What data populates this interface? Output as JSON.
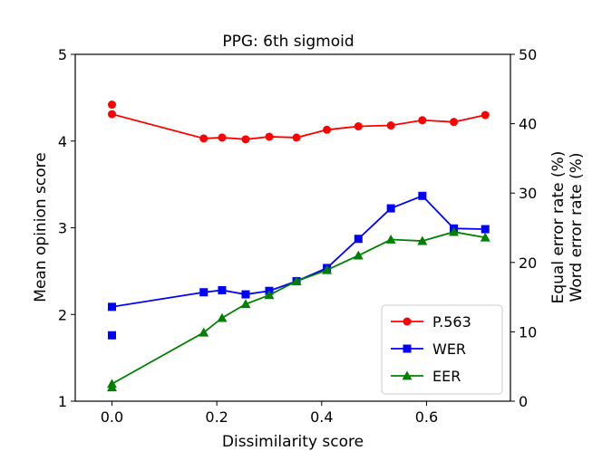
{
  "chart_data": {
    "type": "line",
    "title": "PPG: 6th sigmoid",
    "xlabel": "Dissimilarity score",
    "ylabel": "Mean opinion score",
    "y2label": [
      "Equal error rate (%)",
      "Word error rate (%)"
    ],
    "xlim": [
      -0.07,
      0.76
    ],
    "ylim": [
      1,
      5
    ],
    "y2lim": [
      0,
      50
    ],
    "xticks": [
      "0.0",
      "0.2",
      "0.4",
      "0.6"
    ],
    "xtick_values": [
      0.0,
      0.2,
      0.4,
      0.6
    ],
    "yticks": [
      "1",
      "2",
      "3",
      "4",
      "5"
    ],
    "ytick_values": [
      1,
      2,
      3,
      4,
      5
    ],
    "y2ticks": [
      "0",
      "10",
      "20",
      "30",
      "40",
      "50"
    ],
    "y2tick_values": [
      0,
      10,
      20,
      30,
      40,
      50
    ],
    "grid": false,
    "legend_position": "lower-right",
    "series": [
      {
        "name": "P.563",
        "axis": "left",
        "color": "#ff0000",
        "marker": "circle",
        "connect_from": 1,
        "x": [
          0.0,
          0.0,
          0.175,
          0.21,
          0.255,
          0.3,
          0.352,
          0.41,
          0.47,
          0.532,
          0.592,
          0.652,
          0.712
        ],
        "y": [
          4.42,
          4.31,
          4.03,
          4.04,
          4.02,
          4.05,
          4.04,
          4.13,
          4.17,
          4.18,
          4.24,
          4.22,
          4.3
        ]
      },
      {
        "name": "WER",
        "axis": "right",
        "color": "#0000ff",
        "marker": "square",
        "connect_from": 1,
        "x": [
          0.0,
          0.0,
          0.175,
          0.21,
          0.255,
          0.3,
          0.352,
          0.41,
          0.47,
          0.532,
          0.592,
          0.652,
          0.712
        ],
        "y": [
          9.5,
          13.6,
          15.7,
          16.0,
          15.4,
          15.9,
          17.3,
          19.2,
          23.4,
          27.8,
          29.6,
          24.9,
          24.8
        ]
      },
      {
        "name": "EER",
        "axis": "right",
        "color": "#008000",
        "marker": "triangle",
        "connect_from": 0,
        "x": [
          0.0,
          0.0,
          0.175,
          0.21,
          0.255,
          0.3,
          0.352,
          0.41,
          0.47,
          0.532,
          0.592,
          0.652,
          0.712
        ],
        "y": [
          2.0,
          2.5,
          9.9,
          12.0,
          14.0,
          15.3,
          17.3,
          18.9,
          21.0,
          23.3,
          23.1,
          24.4,
          23.6
        ]
      }
    ]
  }
}
